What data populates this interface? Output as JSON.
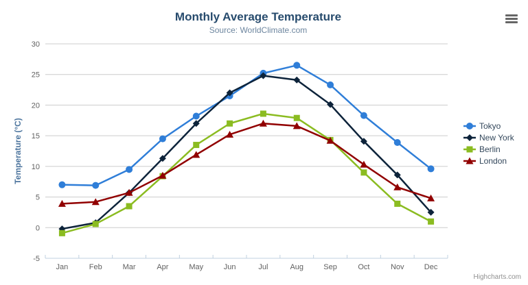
{
  "header": {
    "title": "Monthly Average Temperature",
    "subtitle": "Source: WorldClimate.com"
  },
  "credits": {
    "label": "Highcharts.com"
  },
  "colors": {
    "title": "#274b6d",
    "subtitle": "#6d869f",
    "grid_line": "#cccccc",
    "axis_line": "#c0d0e0",
    "tick_label": "#606060",
    "axis_title": "#4d759e",
    "legend_text": "#33475b",
    "credits_text": "#909090",
    "export_icon": "#666666"
  },
  "chart_data": {
    "type": "line",
    "title": "Monthly Average Temperature",
    "subtitle": "Source: WorldClimate.com",
    "categories": [
      "Jan",
      "Feb",
      "Mar",
      "Apr",
      "May",
      "Jun",
      "Jul",
      "Aug",
      "Sep",
      "Oct",
      "Nov",
      "Dec"
    ],
    "series": [
      {
        "name": "Tokyo",
        "color": "#2f7ed8",
        "marker": "circle",
        "values": [
          7.0,
          6.9,
          9.5,
          14.5,
          18.2,
          21.5,
          25.2,
          26.5,
          23.3,
          18.3,
          13.9,
          9.6
        ]
      },
      {
        "name": "New York",
        "color": "#0d233a",
        "marker": "diamond",
        "values": [
          -0.2,
          0.8,
          5.7,
          11.3,
          17.0,
          22.0,
          24.8,
          24.1,
          20.1,
          14.1,
          8.6,
          2.5
        ]
      },
      {
        "name": "Berlin",
        "color": "#8bbc21",
        "marker": "square",
        "values": [
          -0.9,
          0.6,
          3.5,
          8.4,
          13.5,
          17.0,
          18.6,
          17.9,
          14.3,
          9.0,
          3.9,
          1.0
        ]
      },
      {
        "name": "London",
        "color": "#910000",
        "marker": "triangle",
        "values": [
          3.9,
          4.2,
          5.7,
          8.5,
          11.9,
          15.2,
          17.0,
          16.6,
          14.2,
          10.3,
          6.6,
          4.8
        ]
      }
    ],
    "xlabel": "",
    "ylabel": "Temperature (°C)",
    "ylim": [
      -5,
      30
    ],
    "ytick_step": 5,
    "grid": true,
    "legend_position": "right"
  }
}
